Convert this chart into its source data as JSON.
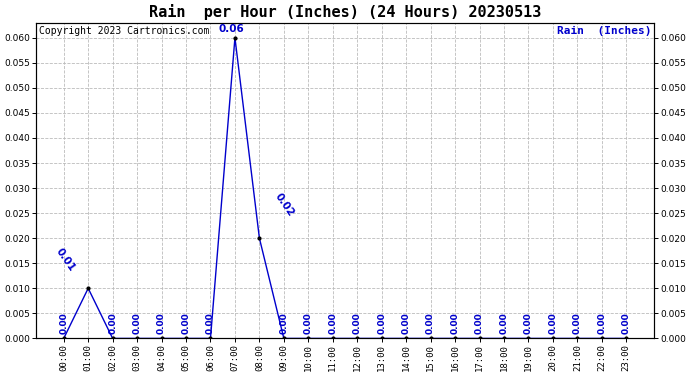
{
  "title": "Rain  per Hour (Inches) (24 Hours) 20230513",
  "copyright_text": "Copyright 2023 Cartronics.com",
  "legend_text": "Rain  (Inches)",
  "hours": [
    "00:00",
    "01:00",
    "02:00",
    "03:00",
    "04:00",
    "05:00",
    "06:00",
    "07:00",
    "08:00",
    "09:00",
    "10:00",
    "11:00",
    "12:00",
    "13:00",
    "14:00",
    "15:00",
    "16:00",
    "17:00",
    "18:00",
    "19:00",
    "20:00",
    "21:00",
    "22:00",
    "23:00"
  ],
  "values": [
    0.0,
    0.01,
    0.0,
    0.0,
    0.0,
    0.0,
    0.0,
    0.06,
    0.02,
    0.0,
    0.0,
    0.0,
    0.0,
    0.0,
    0.0,
    0.0,
    0.0,
    0.0,
    0.0,
    0.0,
    0.0,
    0.0,
    0.0,
    0.0
  ],
  "line_color": "#0000cc",
  "marker_color": "#000000",
  "label_color": "#0000cc",
  "grid_color": "#bbbbbb",
  "background_color": "#ffffff",
  "ylim": [
    0.0,
    0.063
  ],
  "yticks": [
    0.0,
    0.005,
    0.01,
    0.015,
    0.02,
    0.025,
    0.03,
    0.035,
    0.04,
    0.045,
    0.05,
    0.055,
    0.06
  ],
  "title_fontsize": 11,
  "label_fontsize": 6.5,
  "tick_fontsize": 6.5,
  "copyright_fontsize": 7,
  "legend_fontsize": 8
}
